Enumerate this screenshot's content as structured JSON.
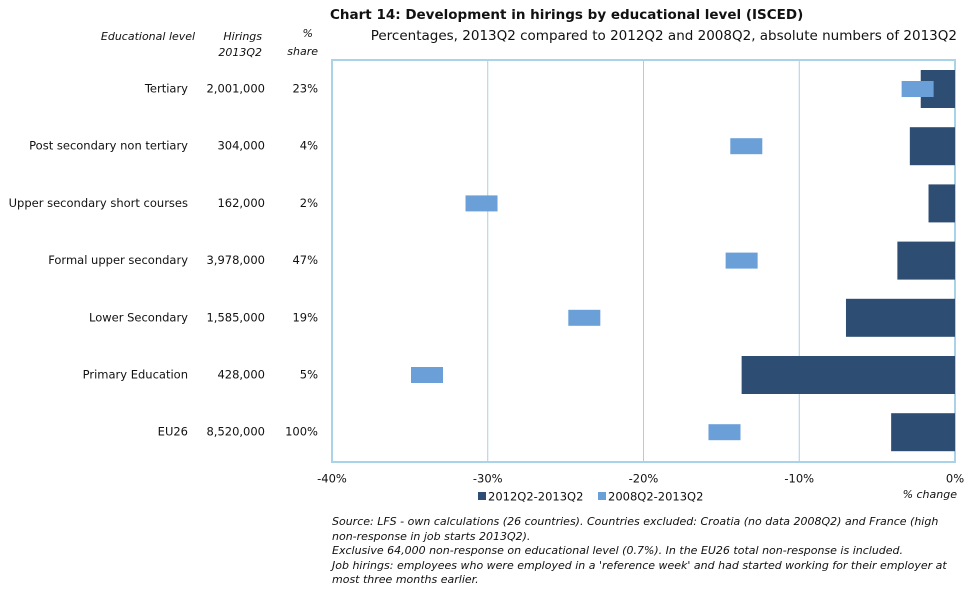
{
  "chart_data": {
    "type": "bar",
    "orientation": "horizontal",
    "title": "Chart 14: Development in hirings by educational level (ISCED)",
    "subtitle": "Percentages, 2013Q2 compared to 2012Q2 and 2008Q2, absolute numbers of 2013Q2",
    "x_label": "% change",
    "categories": [
      "Tertiary",
      "Post secondary non tertiary",
      "Upper secondary short courses",
      "Formal upper secondary",
      "Lower Secondary",
      "Primary Education",
      "EU26"
    ],
    "series": [
      {
        "name": "2012Q2-2013Q2",
        "color": "#2e4d73",
        "marker": "bar",
        "values": [
          -2.2,
          -2.9,
          -1.7,
          -3.7,
          -7.0,
          -13.7,
          -4.1
        ]
      },
      {
        "name": "2008Q2-2013Q2",
        "color": "#6a9fd8",
        "marker": "dash",
        "values": [
          -2.4,
          -13.4,
          -30.4,
          -13.7,
          -23.8,
          -33.9,
          -14.8
        ]
      }
    ],
    "xlim": [
      -40,
      0
    ],
    "xticks": [
      {
        "value": -40,
        "label": "-40%"
      },
      {
        "value": -30,
        "label": "-30%"
      },
      {
        "value": -20,
        "label": "-20%"
      },
      {
        "value": -10,
        "label": "-10%"
      },
      {
        "value": 0,
        "label": "0%"
      }
    ],
    "grid": true,
    "table": {
      "headers": [
        [
          "Educational level"
        ],
        [
          "Hirings",
          "2013Q2"
        ],
        [
          "%",
          "share"
        ]
      ],
      "rows": [
        [
          "2,001,000",
          "23%"
        ],
        [
          "304,000",
          "4%"
        ],
        [
          "162,000",
          "2%"
        ],
        [
          "3,978,000",
          "47%"
        ],
        [
          "1,585,000",
          "19%"
        ],
        [
          "428,000",
          "5%"
        ],
        [
          "8,520,000",
          "100%"
        ]
      ]
    },
    "notes": [
      "Source: LFS - own calculations (26 countries). Countries excluded: Croatia (no data 2008Q2) and France (high non-response in job starts 2013Q2).",
      "Exclusive 64,000 non-response on educational level (0.7%). In the EU26 total non-response is included.",
      "Job hirings: employees who were employed in a 'reference week' and had started working for their employer at most three months earlier."
    ]
  }
}
